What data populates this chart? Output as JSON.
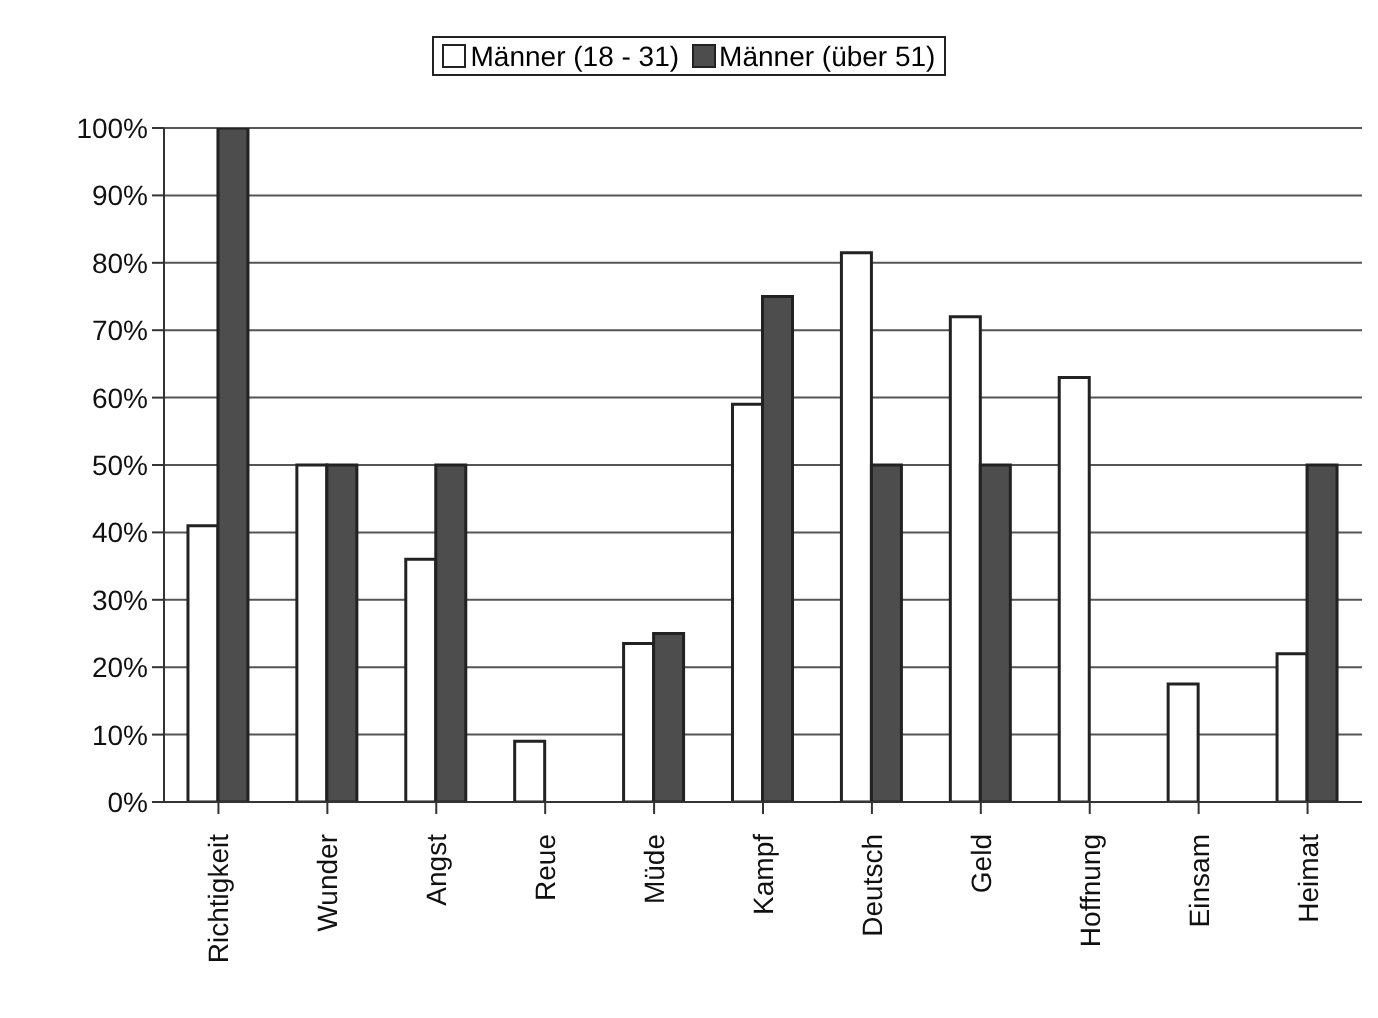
{
  "chart_data": {
    "type": "bar",
    "categories": [
      "Richtigkeit",
      "Wunder",
      "Angst",
      "Reue",
      "Müde",
      "Kampf",
      "Deutsch",
      "Geld",
      "Hoffnung",
      "Einsam",
      "Heimat"
    ],
    "series": [
      {
        "name": "Männer (18 - 31)",
        "color": "#ffffff",
        "values": [
          41,
          50,
          36,
          9,
          23.5,
          59,
          81.5,
          72,
          63,
          17.5,
          22
        ]
      },
      {
        "name": "Männer (über 51)",
        "color": "#4d4d4d",
        "values": [
          100,
          50,
          50,
          null,
          25,
          75,
          50,
          50,
          null,
          null,
          50
        ]
      }
    ],
    "ylim": [
      0,
      100
    ],
    "yticks": [
      {
        "value": 0,
        "label": "0%"
      },
      {
        "value": 10,
        "label": "10%"
      },
      {
        "value": 20,
        "label": "20%"
      },
      {
        "value": 30,
        "label": "30%"
      },
      {
        "value": 40,
        "label": "40%"
      },
      {
        "value": 50,
        "label": "50%"
      },
      {
        "value": 60,
        "label": "60%"
      },
      {
        "value": 70,
        "label": "70%"
      },
      {
        "value": 80,
        "label": "80%"
      },
      {
        "value": 90,
        "label": "90%"
      },
      {
        "value": 100,
        "label": "100%"
      }
    ],
    "grid": "y",
    "legend": "top"
  }
}
